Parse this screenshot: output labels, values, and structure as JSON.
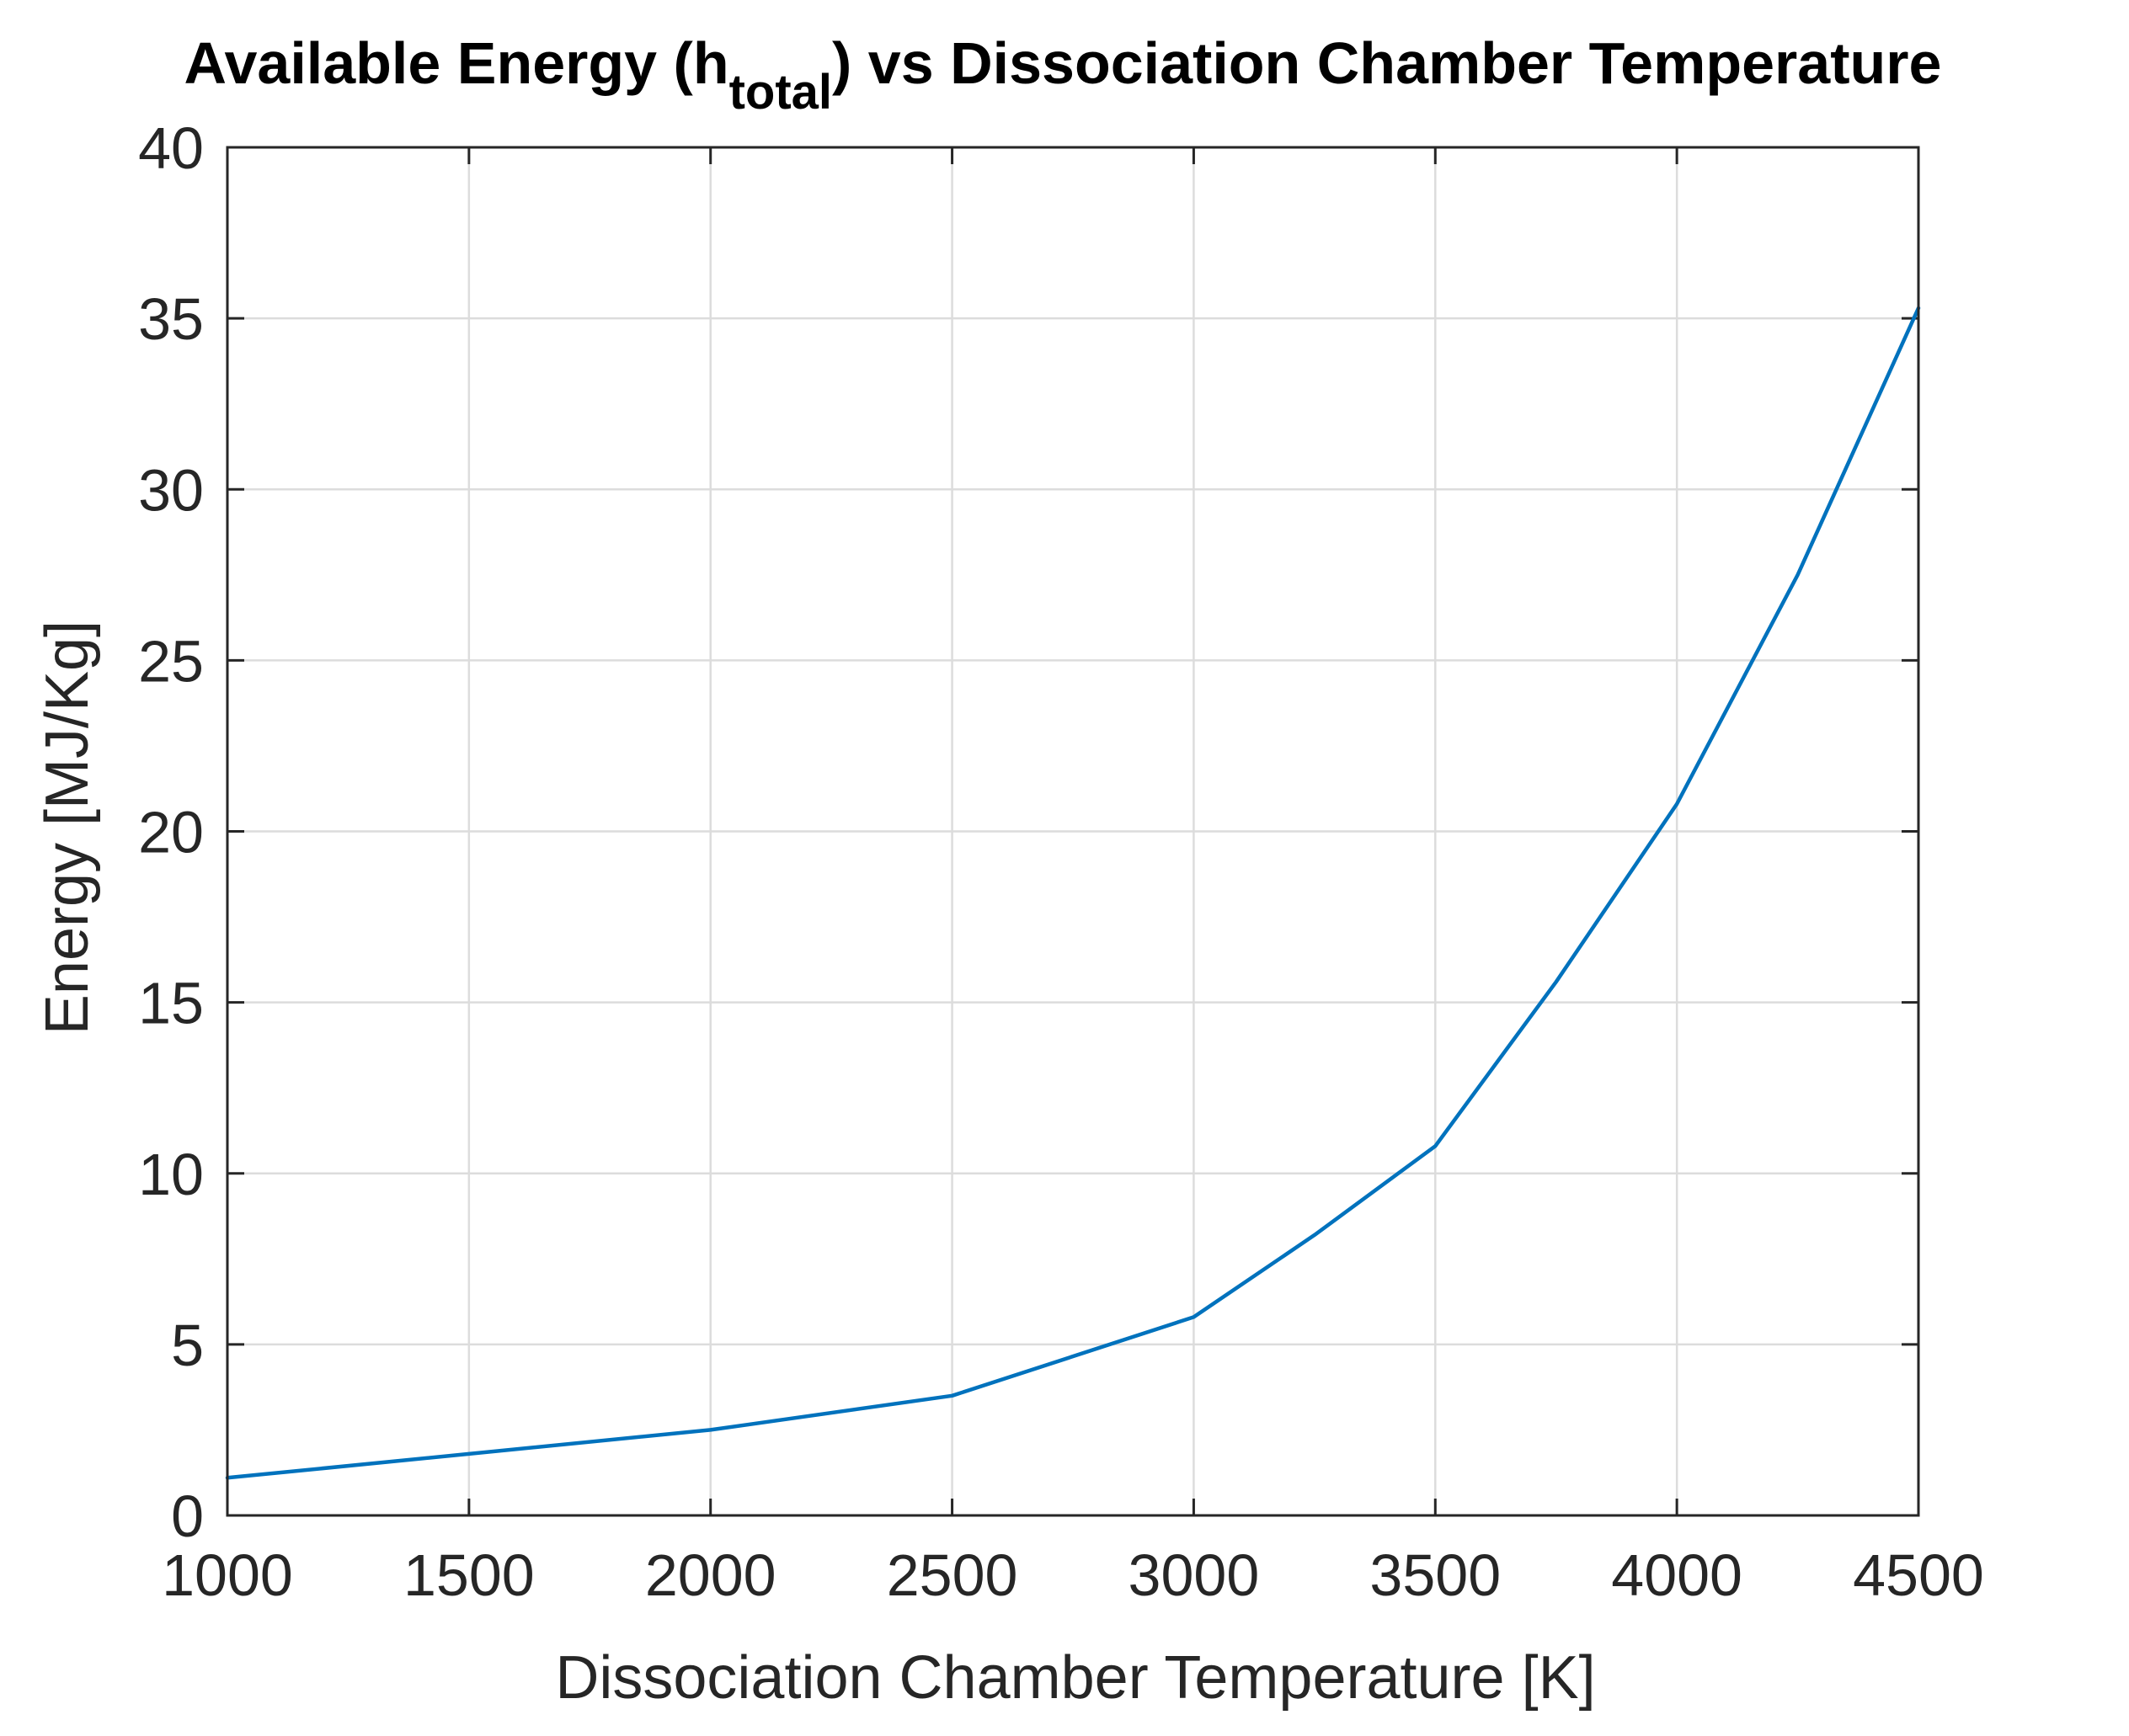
{
  "chart_data": {
    "type": "line",
    "title": {
      "prefix": "Available Energy (h",
      "subscript": "total",
      "suffix": ") vs Dissociation Chamber Temperature"
    },
    "xlabel": "Dissociation Chamber Temperature [K]",
    "ylabel": "Energy [MJ/Kg]",
    "xlim": [
      1000,
      4500
    ],
    "ylim": [
      0,
      40
    ],
    "xticks": [
      1000,
      1500,
      2000,
      2500,
      3000,
      3500,
      4000,
      4500
    ],
    "yticks": [
      0,
      5,
      10,
      15,
      20,
      25,
      30,
      35,
      40
    ],
    "grid": true,
    "series": [
      {
        "name": "h_total",
        "color": "#0072bd",
        "x": [
          1000,
          1500,
          2000,
          2500,
          3000,
          3250,
          3500,
          3750,
          4000,
          4250,
          4500
        ],
        "y": [
          1.1,
          1.8,
          2.5,
          3.5,
          5.8,
          8.2,
          10.8,
          15.6,
          20.8,
          27.5,
          35.3
        ]
      }
    ]
  }
}
